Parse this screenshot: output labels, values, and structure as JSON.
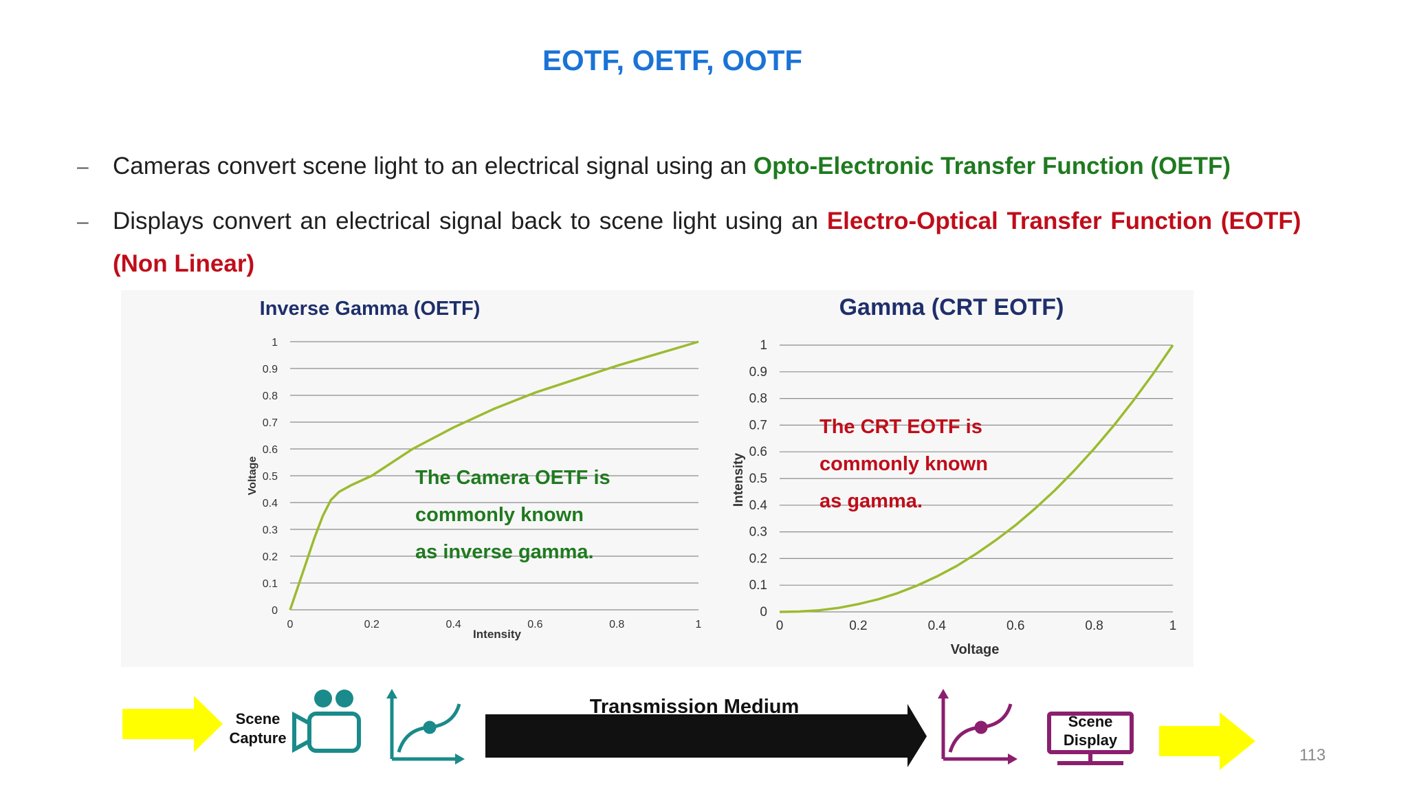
{
  "slide": {
    "title": "EOTF, OETF, OOTF",
    "page_number": "113"
  },
  "bullets": [
    {
      "dash": "–",
      "text": "Cameras convert scene light to an electrical signal using an ",
      "highlight": "Opto-Electronic Transfer Function (OETF)"
    },
    {
      "dash": "–",
      "text": "Displays convert an electrical signal back to scene light using an ",
      "highlight": "Electro-Optical Transfer Function (EOTF)",
      "continuation": "(Non Linear)"
    }
  ],
  "chart_data": [
    {
      "type": "line",
      "title": "Inverse Gamma (OETF)",
      "xlabel": "Intensity",
      "ylabel": "Voltage",
      "xlim": [
        0,
        1
      ],
      "ylim": [
        0,
        1
      ],
      "xticks": [
        "0",
        "0.2",
        "0.4",
        "0.6",
        "0.8",
        "1"
      ],
      "yticks": [
        "0",
        "0.1",
        "0.2",
        "0.3",
        "0.4",
        "0.5",
        "0.6",
        "0.7",
        "0.8",
        "0.9",
        "1"
      ],
      "grid": "horizontal",
      "color": "#9bbb2f",
      "x": [
        0,
        0.02,
        0.04,
        0.06,
        0.08,
        0.1,
        0.12,
        0.15,
        0.2,
        0.25,
        0.3,
        0.4,
        0.5,
        0.6,
        0.7,
        0.8,
        0.9,
        1.0
      ],
      "y": [
        0,
        0.09,
        0.18,
        0.27,
        0.35,
        0.41,
        0.44,
        0.465,
        0.5,
        0.55,
        0.6,
        0.68,
        0.75,
        0.81,
        0.86,
        0.91,
        0.955,
        1.0
      ],
      "annotation": [
        "The  Camera  OETF  is",
        "commonly     known",
        "as inverse gamma."
      ],
      "annotation_color": "#1f7a1f"
    },
    {
      "type": "line",
      "title": "Gamma (CRT EOTF)",
      "xlabel": "Voltage",
      "ylabel": "Intensity",
      "xlim": [
        0,
        1
      ],
      "ylim": [
        0,
        1
      ],
      "xticks": [
        "0",
        "0.2",
        "0.4",
        "0.6",
        "0.8",
        "1"
      ],
      "yticks": [
        "0",
        "0.1",
        "0.2",
        "0.3",
        "0.4",
        "0.5",
        "0.6",
        "0.7",
        "0.8",
        "0.9",
        "1"
      ],
      "grid": "horizontal",
      "color": "#9bbb2f",
      "x": [
        0,
        0.05,
        0.1,
        0.15,
        0.2,
        0.25,
        0.3,
        0.35,
        0.4,
        0.45,
        0.5,
        0.55,
        0.6,
        0.65,
        0.7,
        0.75,
        0.8,
        0.85,
        0.9,
        0.95,
        1.0
      ],
      "y": [
        0,
        0.0013,
        0.006,
        0.015,
        0.029,
        0.047,
        0.07,
        0.099,
        0.133,
        0.172,
        0.218,
        0.269,
        0.325,
        0.388,
        0.456,
        0.531,
        0.612,
        0.699,
        0.793,
        0.893,
        1.0
      ],
      "annotation": [
        "The    CRT    EOTF    is",
        "commonly   known",
        "as gamma."
      ],
      "annotation_color": "#c00d1a"
    }
  ],
  "flow": {
    "scene_capture": [
      "Scene",
      "Capture"
    ],
    "transmission": "Transmission Medium",
    "scene_display": [
      "Scene",
      "Display"
    ],
    "colors": {
      "arrow_yellow": "#ffff00",
      "teal": "#1a8a8a",
      "magenta": "#8b1f6e",
      "black_arrow": "#111111"
    },
    "icons": [
      "camera-icon",
      "curve-graph-icon",
      "monitor-icon"
    ]
  }
}
